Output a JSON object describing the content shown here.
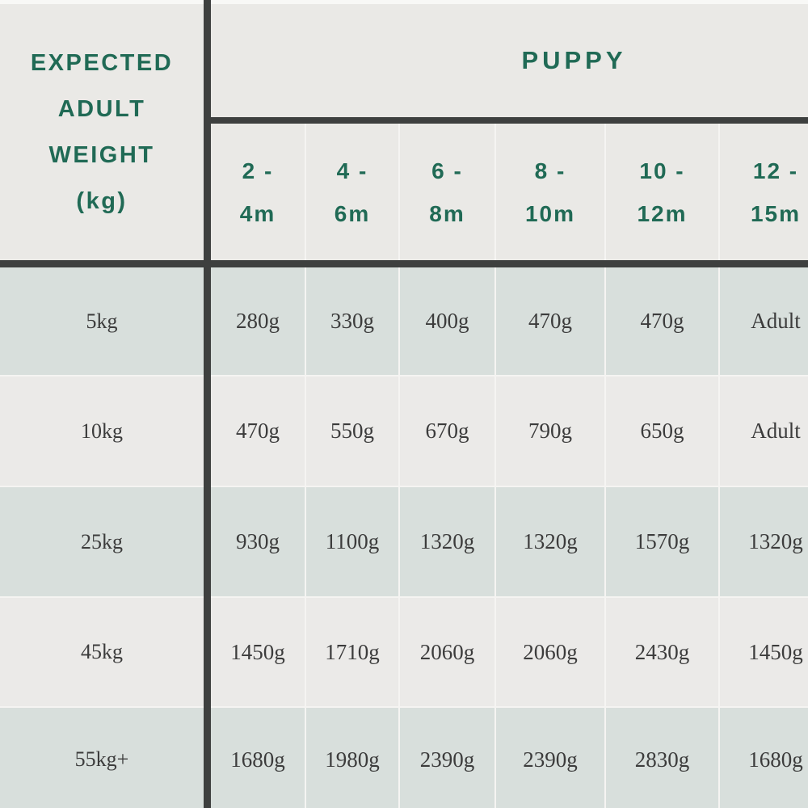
{
  "colors": {
    "accent_green": "#206a55",
    "rule_dark": "#3e403f",
    "row_green": "#d8dfdc",
    "row_light": "#ebeae8",
    "header_bg": "#eae9e6",
    "cell_separator": "#f5f4f2",
    "text_dark": "#3c3c3c"
  },
  "table": {
    "corner": {
      "lines": [
        "EXPECTED",
        "ADULT",
        "WEIGHT",
        "(kg)"
      ]
    },
    "group_header": "PUPPY",
    "columns": [
      {
        "top": "2 -",
        "bottom": "4m"
      },
      {
        "top": "4 -",
        "bottom": "6m"
      },
      {
        "top": "6 -",
        "bottom": "8m"
      },
      {
        "top": "8 -",
        "bottom": "10m"
      },
      {
        "top": "10 -",
        "bottom": "12m"
      },
      {
        "top": "12 -",
        "bottom": "15m"
      }
    ],
    "rows": [
      {
        "label": "5kg",
        "values": [
          "280g",
          "330g",
          "400g",
          "470g",
          "470g",
          "Adult"
        ]
      },
      {
        "label": "10kg",
        "values": [
          "470g",
          "550g",
          "670g",
          "790g",
          "650g",
          "Adult"
        ]
      },
      {
        "label": "25kg",
        "values": [
          "930g",
          "1100g",
          "1320g",
          "1320g",
          "1570g",
          "1320g"
        ]
      },
      {
        "label": "45kg",
        "values": [
          "1450g",
          "1710g",
          "2060g",
          "2060g",
          "2430g",
          "1450g"
        ]
      },
      {
        "label": "55kg+",
        "values": [
          "1680g",
          "1980g",
          "2390g",
          "2390g",
          "2830g",
          "1680g"
        ]
      }
    ]
  },
  "chart_data": {
    "type": "table",
    "title": "PUPPY",
    "row_header": "EXPECTED ADULT WEIGHT (kg)",
    "columns": [
      "2 - 4m",
      "4 - 6m",
      "6 - 8m",
      "8 - 10m",
      "10 - 12m",
      "12 - 15m"
    ],
    "rows": [
      {
        "expected_adult_weight": "5kg",
        "values": [
          "280g",
          "330g",
          "400g",
          "470g",
          "470g",
          "Adult"
        ]
      },
      {
        "expected_adult_weight": "10kg",
        "values": [
          "470g",
          "550g",
          "670g",
          "790g",
          "650g",
          "Adult"
        ]
      },
      {
        "expected_adult_weight": "25kg",
        "values": [
          "930g",
          "1100g",
          "1320g",
          "1320g",
          "1570g",
          "1320g"
        ]
      },
      {
        "expected_adult_weight": "45kg",
        "values": [
          "1450g",
          "1710g",
          "2060g",
          "2060g",
          "2430g",
          "1450g"
        ]
      },
      {
        "expected_adult_weight": "55kg+",
        "values": [
          "1680g",
          "1980g",
          "2390g",
          "2390g",
          "2830g",
          "1680g"
        ]
      }
    ]
  }
}
